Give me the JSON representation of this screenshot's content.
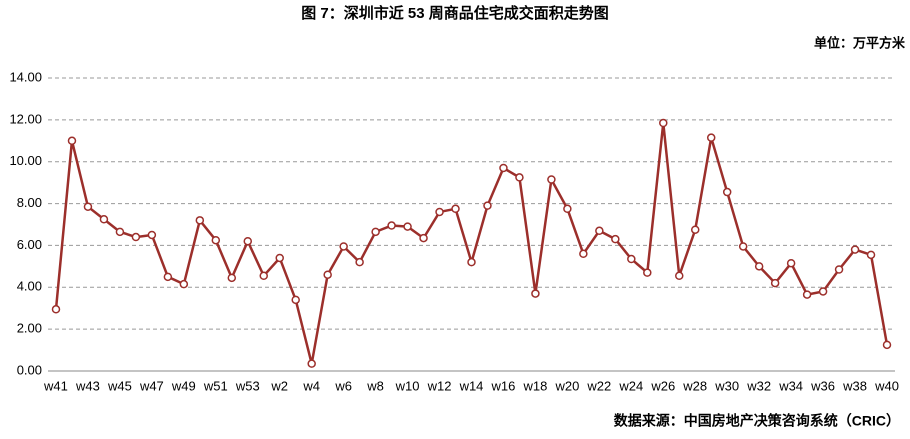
{
  "chart_data": {
    "type": "line",
    "title": "图 7：深圳市近 53 周商品住宅成交面积走势图",
    "unit": "单位：万平方米",
    "source": "数据来源：中国房地产决策咨询系统（CRIC）",
    "categories": [
      "w41",
      null,
      "w43",
      null,
      "w45",
      null,
      "w47",
      null,
      "w49",
      null,
      "w51",
      null,
      "w53",
      null,
      "w2",
      null,
      "w4",
      null,
      "w6",
      null,
      "w8",
      null,
      "w10",
      null,
      "w12",
      null,
      "w14",
      null,
      "w16",
      null,
      "w18",
      null,
      "w20",
      null,
      "w22",
      null,
      "w24",
      null,
      "w26",
      null,
      "w28",
      null,
      "w30",
      null,
      "w32",
      null,
      "w34",
      null,
      "w36",
      null,
      "w38",
      null,
      "w40"
    ],
    "values": [
      2.95,
      11.0,
      7.85,
      7.25,
      6.65,
      6.4,
      6.5,
      4.5,
      4.15,
      7.2,
      6.25,
      4.45,
      6.2,
      4.55,
      5.4,
      3.4,
      0.35,
      4.6,
      5.95,
      5.2,
      6.65,
      6.95,
      6.9,
      6.35,
      7.6,
      7.75,
      5.2,
      7.9,
      9.7,
      9.25,
      3.7,
      9.15,
      7.75,
      5.6,
      6.7,
      6.3,
      5.35,
      4.7,
      11.85,
      4.55,
      6.75,
      11.15,
      8.55,
      5.95,
      5.0,
      4.2,
      5.15,
      3.65,
      3.8,
      4.85,
      5.8,
      5.55,
      1.25
    ],
    "color": "#9c2f2b",
    "ylim": [
      0,
      14
    ],
    "yticks": [
      {
        "value": 0,
        "label": "0.00"
      },
      {
        "value": 2,
        "label": "2.00"
      },
      {
        "value": 4,
        "label": "4.00"
      },
      {
        "value": 6,
        "label": "6.00"
      },
      {
        "value": 8,
        "label": "8.00"
      },
      {
        "value": 10,
        "label": "10.00"
      },
      {
        "value": 12,
        "label": "12.00"
      },
      {
        "value": 14,
        "label": "14.00"
      }
    ],
    "grid": true
  }
}
